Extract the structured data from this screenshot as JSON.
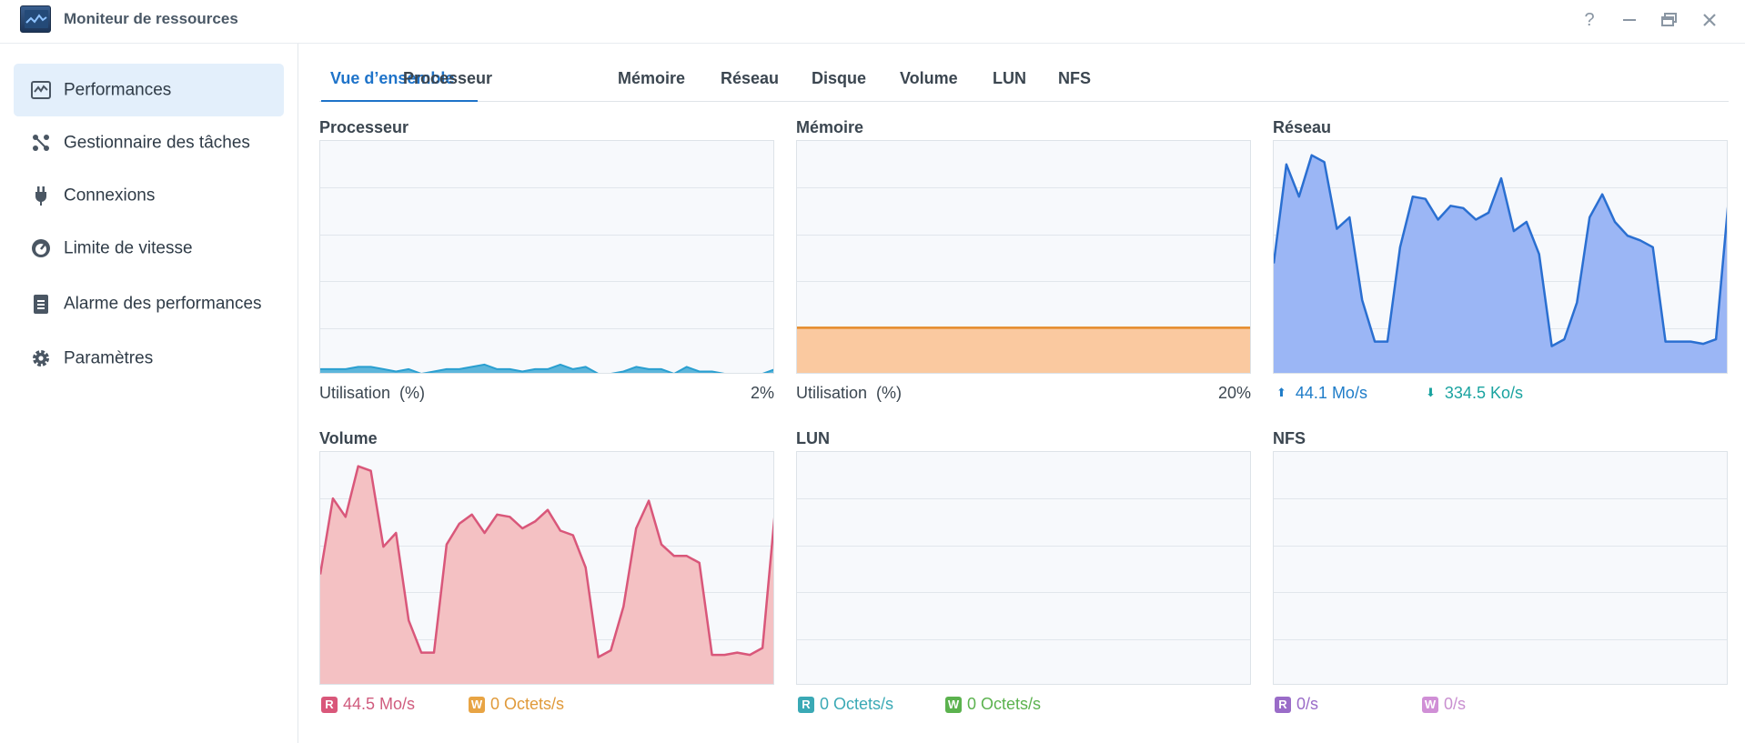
{
  "window": {
    "title": "Moniteur de ressources",
    "controls": [
      "?",
      "—",
      "restore",
      "×"
    ]
  },
  "sidebar": {
    "items": [
      {
        "label": "Performances",
        "icon": "performance-chart-icon",
        "active": true
      },
      {
        "label": "Gestionnaire des tâches",
        "icon": "task-manager-icon",
        "active": false
      },
      {
        "label": "Connexions",
        "icon": "plug-icon",
        "active": false
      },
      {
        "label": "Limite de vitesse",
        "icon": "speedometer-icon",
        "active": false
      },
      {
        "label": "Alarme des performances",
        "icon": "clipboard-alarm-icon",
        "active": false
      },
      {
        "label": "Paramètres",
        "icon": "gear-icon",
        "active": false
      }
    ]
  },
  "tabs": [
    {
      "label": "Vue d’ensemble",
      "active": true
    },
    {
      "label": "Processeur",
      "active": false
    },
    {
      "label": "Mémoire",
      "active": false
    },
    {
      "label": "Réseau",
      "active": false
    },
    {
      "label": "Disque",
      "active": false
    },
    {
      "label": "Volume",
      "active": false
    },
    {
      "label": "LUN",
      "active": false
    },
    {
      "label": "NFS",
      "active": false
    }
  ],
  "panels": {
    "cpu": {
      "title": "Processeur",
      "footer_label": "Utilisation  (%)",
      "footer_value": "2%"
    },
    "memory": {
      "title": "Mémoire",
      "footer_label": "Utilisation  (%)",
      "footer_value": "20%"
    },
    "network": {
      "title": "Réseau",
      "upload": "44.1 Mo/s",
      "download": "334.5 Ko/s"
    },
    "volume": {
      "title": "Volume",
      "read_badge": "R",
      "read": "44.5 Mo/s",
      "write_badge": "W",
      "write": "0 Octets/s"
    },
    "lun": {
      "title": "LUN",
      "read_badge": "R",
      "read": "0 Octets/s",
      "write_badge": "W",
      "write": "0 Octets/s"
    },
    "nfs": {
      "title": "NFS",
      "read_badge": "R",
      "read": "0/s",
      "write_badge": "W",
      "write": "0/s"
    }
  },
  "colors": {
    "accent": "#1e73c9",
    "cpu": "#2a9fd0",
    "memory_line": "#e58a2a",
    "memory_fill": "#fac9a0",
    "network_line": "#2a6fd1",
    "network_fill": "#9bb6f5",
    "volume_line": "#d9577a",
    "volume_fill": "#f4c1c3",
    "lun_read": "#3aa9b5",
    "lun_write": "#5bb24e",
    "nfs_read": "#9a6cc8",
    "nfs_write": "#d08fd6",
    "up_arrow": "#1e7cc8",
    "down_arrow": "#1aa3a0"
  },
  "chart_data": [
    {
      "name": "Processeur",
      "type": "area",
      "ylim": [
        0,
        100
      ],
      "values": [
        2,
        2,
        2,
        3,
        3,
        2,
        1,
        2,
        0,
        1,
        2,
        2,
        3,
        4,
        2,
        2,
        1,
        2,
        2,
        4,
        2,
        3,
        0,
        0,
        1,
        3,
        2,
        2,
        0,
        3,
        1,
        1,
        0,
        0,
        0,
        0,
        2
      ]
    },
    {
      "name": "Mémoire",
      "type": "area",
      "ylim": [
        0,
        100
      ],
      "values": [
        20,
        20,
        20,
        20,
        20,
        20,
        20,
        20,
        20,
        20,
        20,
        20,
        20,
        20,
        20,
        20,
        20,
        20,
        20,
        20,
        20,
        20,
        20,
        20,
        20,
        20,
        20,
        20,
        20,
        20,
        20,
        20,
        20,
        20,
        20,
        20,
        20
      ]
    },
    {
      "name": "Réseau",
      "type": "area",
      "ylim": [
        0,
        100
      ],
      "values": [
        48,
        91,
        77,
        95,
        92,
        63,
        68,
        32,
        14,
        14,
        55,
        77,
        76,
        67,
        73,
        72,
        67,
        70,
        85,
        62,
        66,
        52,
        12,
        15,
        31,
        68,
        78,
        66,
        60,
        58,
        55,
        14,
        14,
        14,
        13,
        15,
        76
      ]
    },
    {
      "name": "Volume",
      "type": "area",
      "ylim": [
        0,
        100
      ],
      "values": [
        48,
        81,
        73,
        95,
        93,
        60,
        66,
        28,
        14,
        14,
        61,
        70,
        74,
        66,
        74,
        73,
        68,
        71,
        76,
        67,
        65,
        51,
        12,
        15,
        34,
        68,
        80,
        61,
        56,
        56,
        53,
        13,
        13,
        14,
        13,
        16,
        76
      ]
    },
    {
      "name": "LUN",
      "type": "line",
      "ylim": [
        0,
        100
      ],
      "series": [
        {
          "name": "R",
          "values": [
            0,
            0
          ]
        },
        {
          "name": "W",
          "values": [
            0,
            0
          ]
        }
      ]
    },
    {
      "name": "NFS",
      "type": "line",
      "ylim": [
        0,
        100
      ],
      "series": [
        {
          "name": "R",
          "values": [
            0,
            0
          ]
        },
        {
          "name": "W",
          "values": [
            0,
            0
          ]
        }
      ]
    }
  ]
}
